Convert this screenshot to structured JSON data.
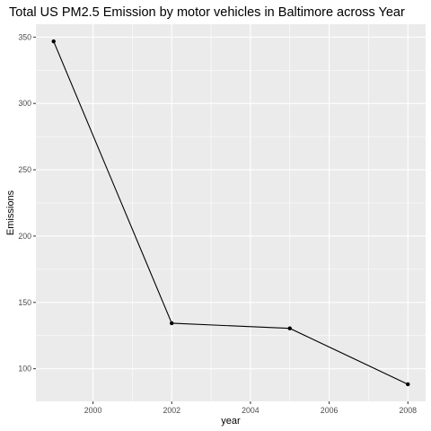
{
  "chart_data": {
    "type": "line",
    "title": "Total US PM2.5 Emission by motor vehicles in Baltimore across Year",
    "xlabel": "year",
    "ylabel": "Emissions",
    "x": [
      1999,
      2002,
      2005,
      2008
    ],
    "series": [
      {
        "values": [
          346.82,
          134.31,
          130.43,
          88.28
        ],
        "color": "#000000"
      }
    ],
    "xlim": [
      1998.55,
      2008.45
    ],
    "ylim": [
      75.4,
      359.7
    ],
    "x_ticks": [
      2000,
      2002,
      2004,
      2006,
      2008
    ],
    "x_tick_labels": [
      "2000",
      "2002",
      "2004",
      "2006",
      "2008"
    ],
    "y_ticks": [
      100,
      150,
      200,
      250,
      300,
      350
    ],
    "y_tick_labels": [
      "100",
      "150",
      "200",
      "250",
      "300",
      "350"
    ],
    "grid": true,
    "panel_background": "#ebebeb",
    "grid_color": "#ffffff"
  }
}
